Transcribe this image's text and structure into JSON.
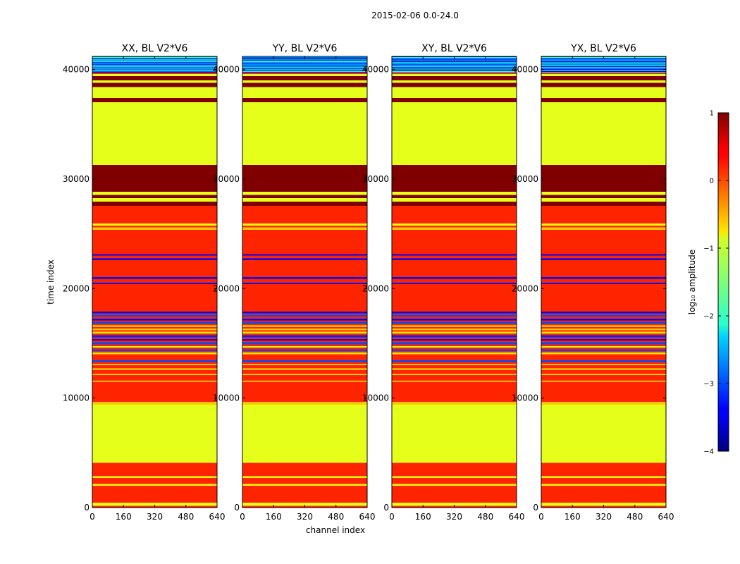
{
  "suptitle": "2015-02-06 0.0-24.0",
  "xlabel": "channel index",
  "ylabel": "time index",
  "colorbar": {
    "label": "log₁₀ amplitude",
    "ticks": [
      1,
      0,
      -1,
      -2,
      -3,
      -4
    ],
    "tick_labels": [
      "1",
      "0",
      "−1",
      "−2",
      "−3",
      "−4"
    ],
    "vmin": -4,
    "vmax": 1,
    "colormap": "jet"
  },
  "chart_data": {
    "type": "heatmap",
    "x_ticks": [
      0,
      160,
      320,
      480,
      640
    ],
    "x_tick_labels": [
      "0",
      "160",
      "320",
      "480",
      "640"
    ],
    "xlim": [
      0,
      640
    ],
    "y_ticks": [
      0,
      10000,
      20000,
      30000,
      40000
    ],
    "y_tick_labels": [
      "0",
      "10000",
      "20000",
      "30000",
      "40000"
    ],
    "ylim": [
      0,
      41200
    ],
    "panels": [
      {
        "title": "XX, BL V2*V6"
      },
      {
        "title": "YY, BL V2*V6"
      },
      {
        "title": "XY, BL V2*V6"
      },
      {
        "title": "YX, BL V2*V6"
      }
    ],
    "bands": [
      {
        "from": 0,
        "to": 150,
        "value": 0.2
      },
      {
        "from": 150,
        "to": 450,
        "value": -1.0
      },
      {
        "from": 450,
        "to": 2000,
        "value": 0.2
      },
      {
        "from": 2000,
        "to": 2150,
        "value": -0.9
      },
      {
        "from": 2150,
        "to": 2700,
        "value": 0.2
      },
      {
        "from": 2700,
        "to": 2850,
        "value": -0.9
      },
      {
        "from": 2850,
        "to": 4100,
        "value": 0.2
      },
      {
        "from": 4100,
        "to": 9400,
        "value": -1.0
      },
      {
        "from": 9400,
        "to": 9650,
        "value": -0.6
      },
      {
        "from": 9650,
        "to": 11500,
        "value": 0.2
      },
      {
        "from": 11500,
        "to": 11600,
        "value": -0.8
      },
      {
        "from": 11600,
        "to": 12100,
        "value": 0.2
      },
      {
        "from": 12100,
        "to": 12200,
        "value": -0.8
      },
      {
        "from": 12200,
        "to": 12600,
        "value": 0.2
      },
      {
        "from": 12600,
        "to": 12700,
        "value": -0.8
      },
      {
        "from": 12700,
        "to": 13000,
        "value": 0.2
      },
      {
        "from": 13000,
        "to": 13100,
        "value": -0.8
      },
      {
        "from": 13100,
        "to": 13300,
        "value": 0.2
      },
      {
        "from": 13300,
        "to": 13450,
        "value": -3.0
      },
      {
        "from": 13450,
        "to": 14000,
        "value": 0.2
      },
      {
        "from": 14000,
        "to": 14150,
        "value": -0.8
      },
      {
        "from": 14150,
        "to": 14300,
        "value": 0.2
      },
      {
        "from": 14300,
        "to": 14450,
        "value": -3.0
      },
      {
        "from": 14450,
        "to": 14600,
        "value": 0.2
      },
      {
        "from": 14600,
        "to": 14750,
        "value": -0.8
      },
      {
        "from": 14750,
        "to": 14900,
        "value": 0.2
      },
      {
        "from": 14900,
        "to": 15100,
        "value": -3.0
      },
      {
        "from": 15100,
        "to": 15250,
        "value": 0.2
      },
      {
        "from": 15250,
        "to": 15400,
        "value": -3.4
      },
      {
        "from": 15400,
        "to": 15550,
        "value": 0.2
      },
      {
        "from": 15550,
        "to": 15750,
        "value": -3.2
      },
      {
        "from": 15750,
        "to": 15900,
        "value": 0.2
      },
      {
        "from": 15900,
        "to": 16050,
        "value": -0.8
      },
      {
        "from": 16050,
        "to": 16200,
        "value": 0.2
      },
      {
        "from": 16200,
        "to": 16350,
        "value": -0.6
      },
      {
        "from": 16350,
        "to": 16500,
        "value": 0.2
      },
      {
        "from": 16500,
        "to": 16650,
        "value": -0.9
      },
      {
        "from": 16650,
        "to": 16800,
        "value": 0.2
      },
      {
        "from": 16800,
        "to": 16950,
        "value": -3.0
      },
      {
        "from": 16950,
        "to": 17100,
        "value": 0.2
      },
      {
        "from": 17100,
        "to": 17250,
        "value": -3.4
      },
      {
        "from": 17250,
        "to": 17450,
        "value": 0.2
      },
      {
        "from": 17450,
        "to": 17600,
        "value": -3.0
      },
      {
        "from": 17600,
        "to": 17750,
        "value": 0.2
      },
      {
        "from": 17750,
        "to": 17900,
        "value": -3.4
      },
      {
        "from": 17900,
        "to": 20400,
        "value": 0.2
      },
      {
        "from": 20400,
        "to": 20550,
        "value": -3.4
      },
      {
        "from": 20550,
        "to": 20900,
        "value": 0.2
      },
      {
        "from": 20900,
        "to": 21050,
        "value": -3.4
      },
      {
        "from": 21050,
        "to": 22600,
        "value": 0.2
      },
      {
        "from": 22600,
        "to": 22750,
        "value": -3.4
      },
      {
        "from": 22750,
        "to": 23000,
        "value": 0.2
      },
      {
        "from": 23000,
        "to": 23150,
        "value": -3.4
      },
      {
        "from": 23150,
        "to": 25350,
        "value": 0.2
      },
      {
        "from": 25350,
        "to": 25600,
        "value": -0.6
      },
      {
        "from": 25600,
        "to": 25750,
        "value": 0.2
      },
      {
        "from": 25750,
        "to": 25950,
        "value": -0.9
      },
      {
        "from": 25950,
        "to": 27550,
        "value": 0.2
      },
      {
        "from": 27550,
        "to": 27950,
        "value": 1.0
      },
      {
        "from": 27950,
        "to": 28250,
        "value": -1.0
      },
      {
        "from": 28250,
        "to": 28550,
        "value": 1.0
      },
      {
        "from": 28550,
        "to": 28850,
        "value": -1.0
      },
      {
        "from": 28850,
        "to": 31300,
        "value": 1.0
      },
      {
        "from": 31300,
        "to": 37000,
        "value": -1.0
      },
      {
        "from": 37000,
        "to": 37400,
        "value": 1.0
      },
      {
        "from": 37400,
        "to": 38400,
        "value": -1.0
      },
      {
        "from": 38400,
        "to": 38800,
        "value": 1.0
      },
      {
        "from": 38800,
        "to": 39000,
        "value": -1.0
      },
      {
        "from": 39000,
        "to": 39400,
        "value": 1.0
      },
      {
        "from": 39400,
        "to": 39600,
        "value": -1.0
      },
      {
        "from": 39600,
        "to": 39750,
        "value": 0.2
      }
    ],
    "noisy_top": {
      "from": 39750,
      "to": 41200,
      "levels": [
        -3.6,
        -2.9,
        -2.2,
        -3.2,
        -1.9,
        -3.5,
        -2.5,
        -1.7,
        -3.0,
        -2.3,
        -3.7,
        -1.8,
        -2.7
      ]
    }
  }
}
